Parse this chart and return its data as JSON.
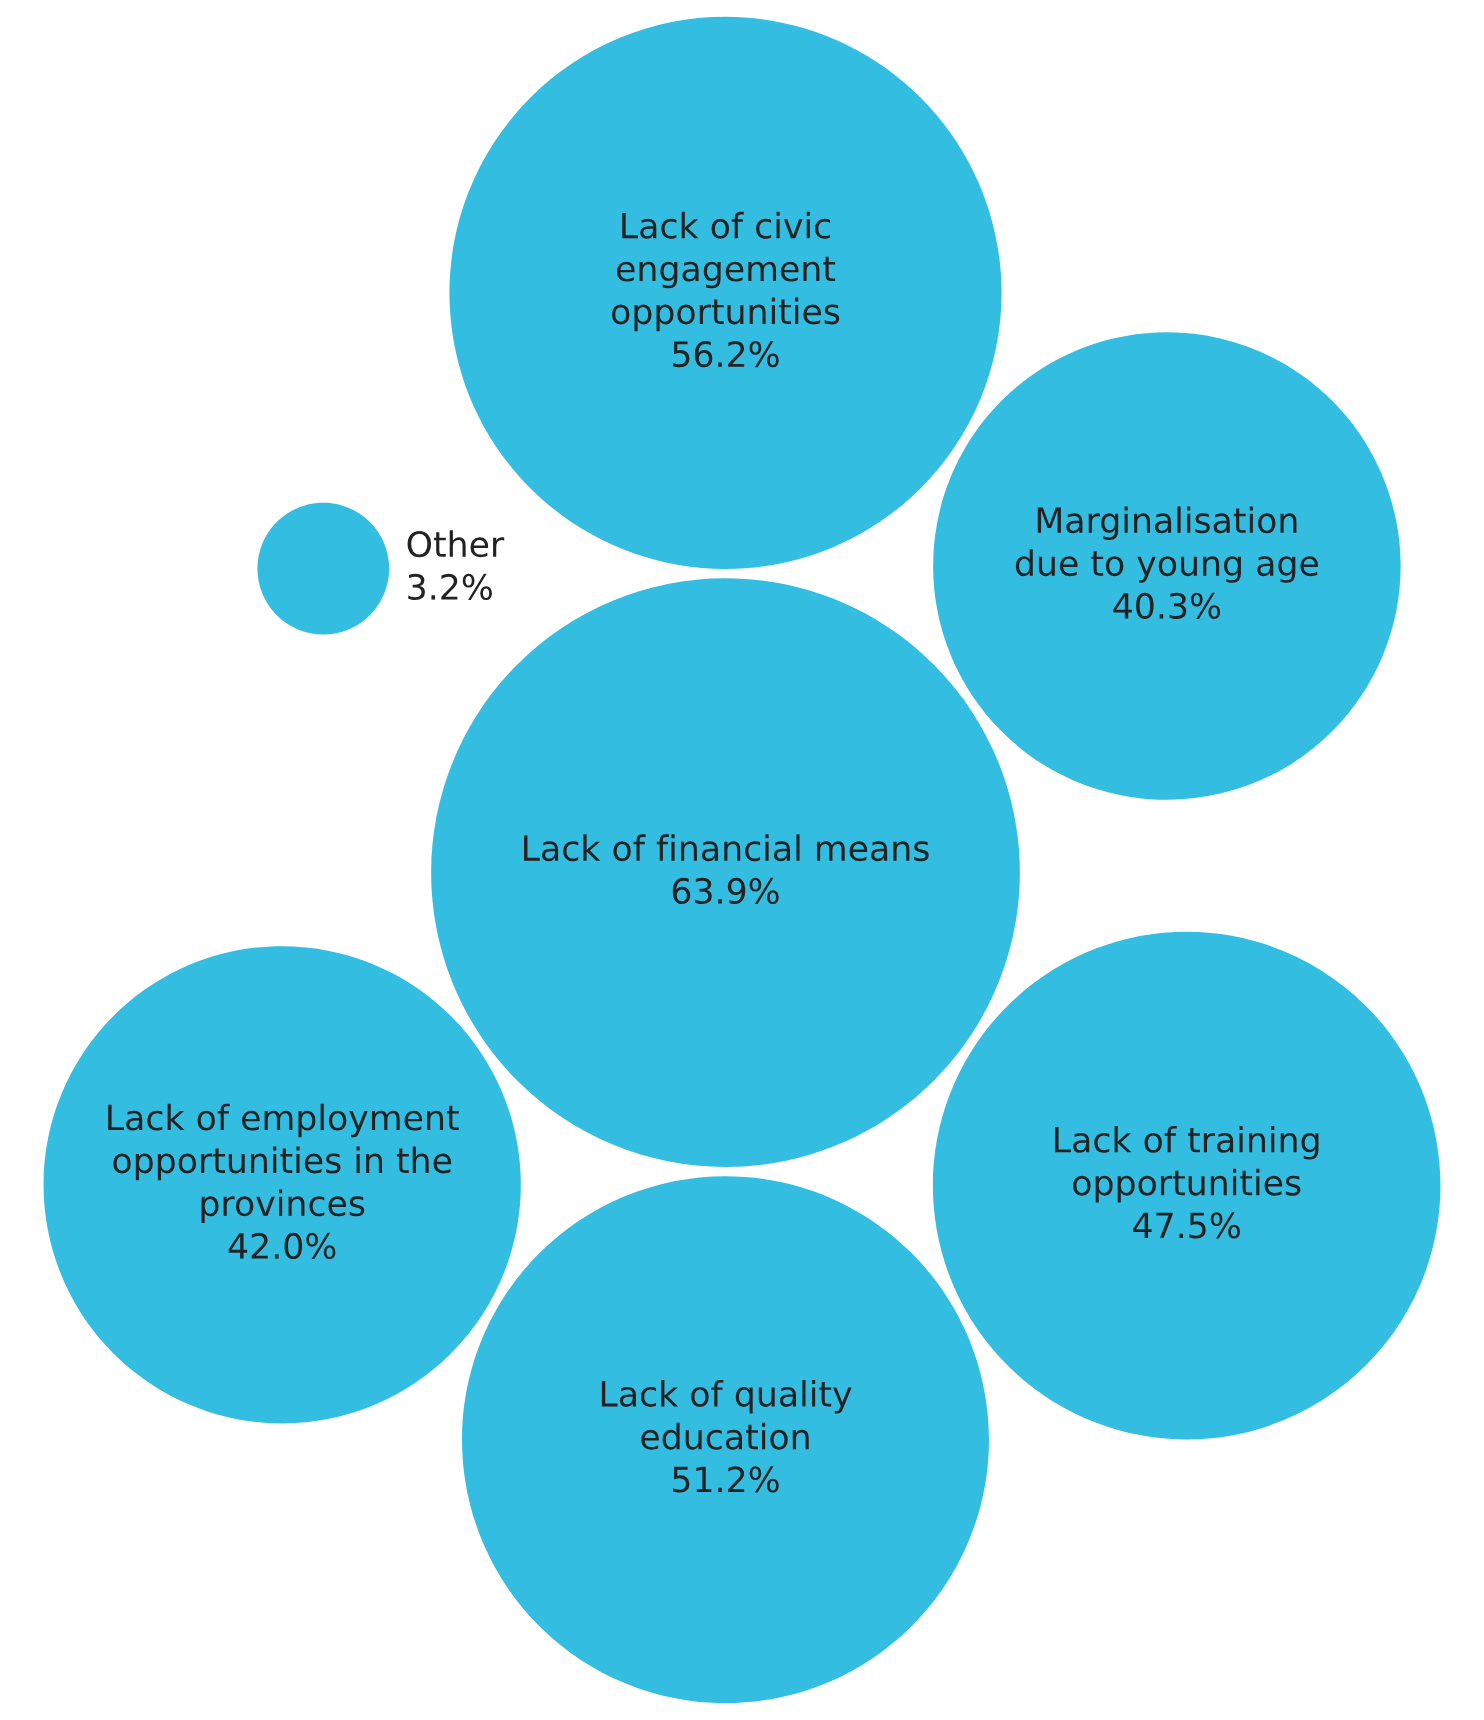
{
  "chart_data": {
    "type": "other",
    "categories": [
      "Lack of employment\nopportunities in the\nprovinces",
      "Lack of training\nopportunities",
      "Other",
      "Lack of financial means",
      "Lack of civic\nengagement\nopportunities",
      "Marginalisation\ndue to young age",
      "Lack of quality\neducation"
    ],
    "values": [
      42.0,
      47.5,
      3.2,
      63.9,
      56.2,
      40.3,
      51.2
    ],
    "value_labels": [
      "42.0%",
      "47.5%",
      "3.2%",
      "63.9%",
      "56.2%",
      "40.3%",
      "51.2%"
    ],
    "color": "#33bde0"
  }
}
